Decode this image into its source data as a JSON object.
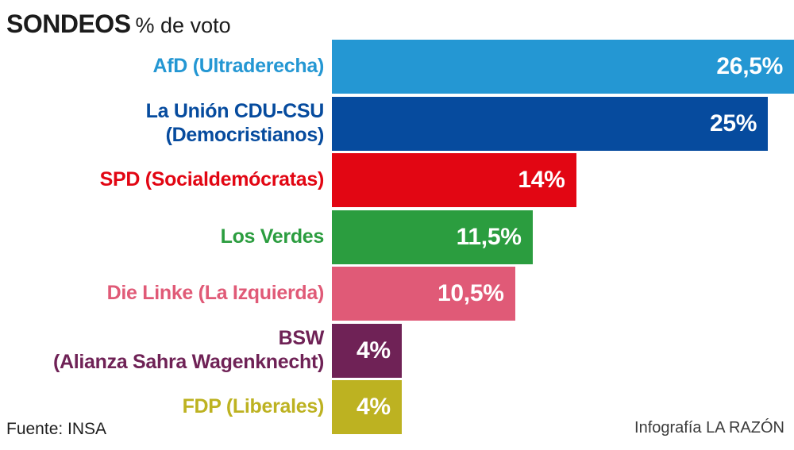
{
  "title": {
    "main": "SONDEOS",
    "sub": "% de voto"
  },
  "footer": {
    "source": "Fuente: INSA",
    "credit": "Infografía LA RAZÓN"
  },
  "chart_data": {
    "type": "bar",
    "orientation": "horizontal",
    "title": "SONDEOS % de voto",
    "unit": "%",
    "xlim": [
      0,
      26.5
    ],
    "grid": false,
    "legend": false,
    "source": "Fuente: INSA",
    "categories": [
      "AfD (Ultraderecha)",
      "La Unión CDU-CSU (Democristianos)",
      "SPD (Socialdemócratas)",
      "Los Verdes",
      "Die Linke (La Izquierda)",
      "BSW (Alianza Sahra Wagenknecht)",
      "FDP (Liberales)"
    ],
    "values": [
      26.5,
      25,
      14,
      11.5,
      10.5,
      4,
      4
    ],
    "bars": [
      {
        "category": "AfD (Ultraderecha)",
        "label_lines": [
          "AfD (Ultraderecha)"
        ],
        "value": 26.5,
        "value_label": "26,5%",
        "color": "#2497D3"
      },
      {
        "category": "La Unión CDU-CSU (Democristianos)",
        "label_lines": [
          "La Unión CDU-CSU",
          "(Democristianos)"
        ],
        "value": 25,
        "value_label": "25%",
        "color": "#064B9E"
      },
      {
        "category": "SPD (Socialdemócratas)",
        "label_lines": [
          "SPD (Socialdemócratas)"
        ],
        "value": 14,
        "value_label": "14%",
        "color": "#E20613"
      },
      {
        "category": "Los Verdes",
        "label_lines": [
          "Los Verdes"
        ],
        "value": 11.5,
        "value_label": "11,5%",
        "color": "#2B9D3F"
      },
      {
        "category": "Die Linke (La Izquierda)",
        "label_lines": [
          "Die Linke (La Izquierda)"
        ],
        "value": 10.5,
        "value_label": "10,5%",
        "color": "#E05A77"
      },
      {
        "category": "BSW (Alianza Sahra Wagenknecht)",
        "label_lines": [
          "BSW",
          "(Alianza Sahra Wagenknecht)"
        ],
        "value": 4,
        "value_label": "4%",
        "color": "#6F2256"
      },
      {
        "category": "FDP (Liberales)",
        "label_lines": [
          "FDP (Liberales)"
        ],
        "value": 4,
        "value_label": "4%",
        "color": "#BDB221"
      }
    ]
  }
}
